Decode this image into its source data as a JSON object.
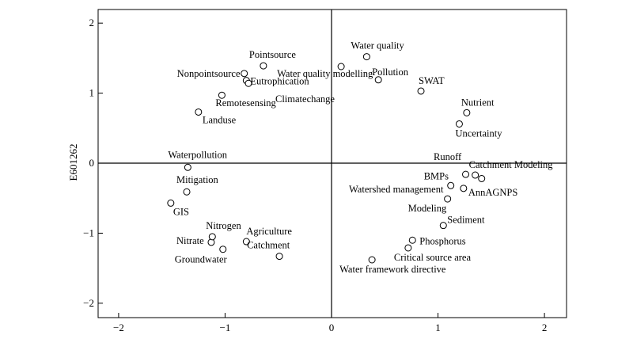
{
  "chart_data": {
    "type": "scatter",
    "ylabel": "E601262",
    "xlabel": "",
    "xlim": [
      -2.2,
      2.2
    ],
    "ylim": [
      -2.2,
      2.2
    ],
    "xticks": [
      -2,
      -1,
      0,
      1,
      2
    ],
    "yticks": [
      2,
      1,
      0,
      -1,
      -2
    ],
    "xtick_labels": [
      "−2",
      "−1",
      "0",
      "1",
      "2"
    ],
    "ytick_labels": [
      "2",
      "1",
      "0",
      "−1",
      "−2"
    ],
    "reference_lines": {
      "x": 0,
      "y": 0
    },
    "points": [
      {
        "label": "Water quality",
        "x": 0.33,
        "y": 1.52
      },
      {
        "label": "Water quality modelling",
        "x": 0.09,
        "y": 1.38
      },
      {
        "label": "Pollution",
        "x": 0.44,
        "y": 1.19
      },
      {
        "label": "SWAT",
        "x": 0.84,
        "y": 1.03
      },
      {
        "label": "Nutrient",
        "x": 1.27,
        "y": 0.72
      },
      {
        "label": "Uncertainty",
        "x": 1.2,
        "y": 0.56
      },
      {
        "label": "Pointsource",
        "x": -0.64,
        "y": 1.39
      },
      {
        "label": "Nonpointsource",
        "x": -0.82,
        "y": 1.28
      },
      {
        "label": "Eutrophication",
        "x": -0.8,
        "y": 1.18
      },
      {
        "label": "",
        "x": -0.78,
        "y": 1.14
      },
      {
        "label": "Remotesensing",
        "x": -1.03,
        "y": 0.97
      },
      {
        "label": "Climatechange",
        "x": null,
        "y": null
      },
      {
        "label": "Landuse",
        "x": -1.25,
        "y": 0.73
      },
      {
        "label": "Waterpollution",
        "x": -1.35,
        "y": -0.06
      },
      {
        "label": "Mitigation",
        "x": -1.36,
        "y": -0.41
      },
      {
        "label": "GIS",
        "x": -1.51,
        "y": -0.57
      },
      {
        "label": "Nitrate",
        "x": -1.13,
        "y": -1.13
      },
      {
        "label": "Nitrogen",
        "x": -1.12,
        "y": -1.05
      },
      {
        "label": "Groundwater",
        "x": -1.02,
        "y": -1.23
      },
      {
        "label": "Agriculture",
        "x": -0.8,
        "y": -1.12
      },
      {
        "label": "Catchment",
        "x": -0.49,
        "y": -1.33
      },
      {
        "label": "Runoff",
        "x": null,
        "y": null
      },
      {
        "label": "Catchment Modeling",
        "x": 1.35,
        "y": -0.17
      },
      {
        "label": "",
        "x": 1.41,
        "y": -0.22
      },
      {
        "label": "",
        "x": 1.26,
        "y": -0.16
      },
      {
        "label": "BMPs",
        "x": 1.12,
        "y": -0.32
      },
      {
        "label": "AnnAGNPS",
        "x": 1.24,
        "y": -0.36
      },
      {
        "label": "Watershed management",
        "x": null,
        "y": null
      },
      {
        "label": "Modeling",
        "x": 1.09,
        "y": -0.51
      },
      {
        "label": "Sediment",
        "x": 1.05,
        "y": -0.89
      },
      {
        "label": "Phosphorus",
        "x": 0.76,
        "y": -1.1
      },
      {
        "label": "Critical source area",
        "x": 0.72,
        "y": -1.21
      },
      {
        "label": "Water framework directive",
        "x": 0.38,
        "y": -1.38
      }
    ]
  }
}
